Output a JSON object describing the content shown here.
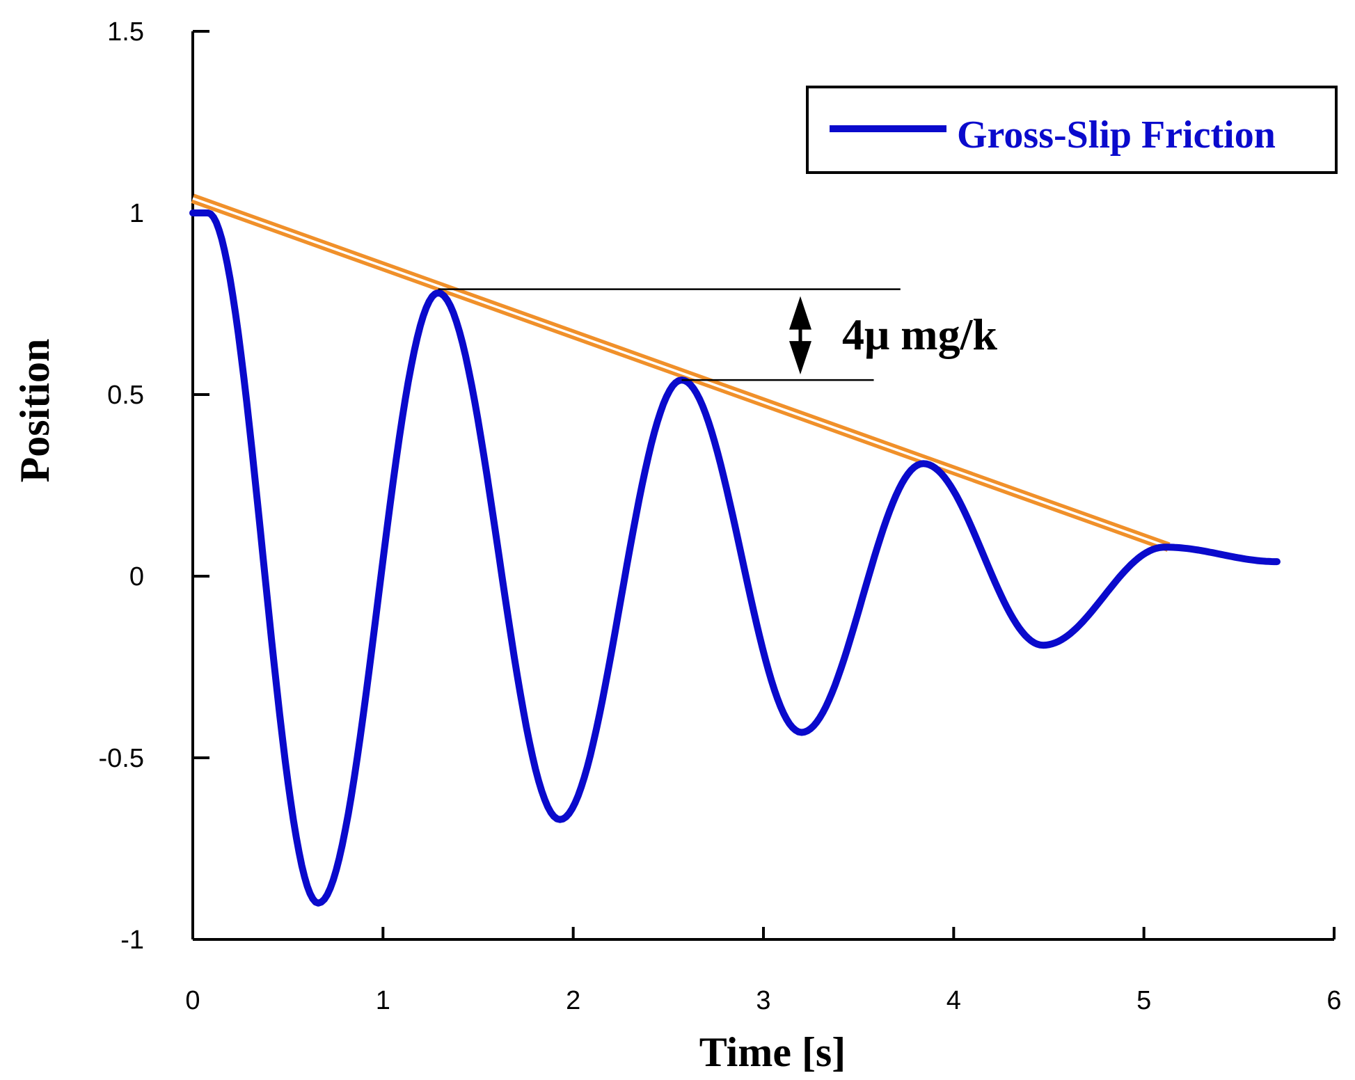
{
  "chart_data": {
    "type": "line",
    "title": "",
    "xlabel": "Time [s]",
    "ylabel": "Position",
    "xlim": [
      0,
      6
    ],
    "ylim": [
      -1,
      1.5
    ],
    "x_ticks": [
      0,
      1,
      2,
      3,
      4,
      5,
      6
    ],
    "x_tick_labels": [
      "0",
      "1",
      "2",
      "3",
      "4",
      "5",
      "6"
    ],
    "y_ticks": [
      -1,
      -0.5,
      0,
      0.5,
      1,
      1.5
    ],
    "y_tick_labels": [
      "-1",
      "-0.5",
      "0",
      "0.5",
      "1",
      "1.5"
    ],
    "grid": false,
    "legend_position": "top-right",
    "series": [
      {
        "name": "Gross-Slip Friction",
        "color": "#0a0acc",
        "points": [
          [
            0.0,
            1.0
          ],
          [
            0.08,
            1.0
          ],
          [
            0.66,
            -0.9
          ],
          [
            1.29,
            0.78
          ],
          [
            1.93,
            -0.67
          ],
          [
            2.57,
            0.54
          ],
          [
            3.2,
            -0.43
          ],
          [
            3.84,
            0.31
          ],
          [
            4.47,
            -0.19
          ],
          [
            5.11,
            0.08
          ],
          [
            5.7,
            0.04
          ]
        ]
      }
    ],
    "envelope": {
      "color": "#f0902a",
      "x": [
        0.0,
        5.13
      ],
      "y": [
        1.04,
        0.08
      ]
    },
    "annotation": {
      "text": "4μ mg/k",
      "refline_top": {
        "x": [
          1.29,
          3.72
        ],
        "y": 0.79
      },
      "refline_bottom": {
        "x": [
          2.57,
          3.58
        ],
        "y": 0.54
      }
    }
  }
}
